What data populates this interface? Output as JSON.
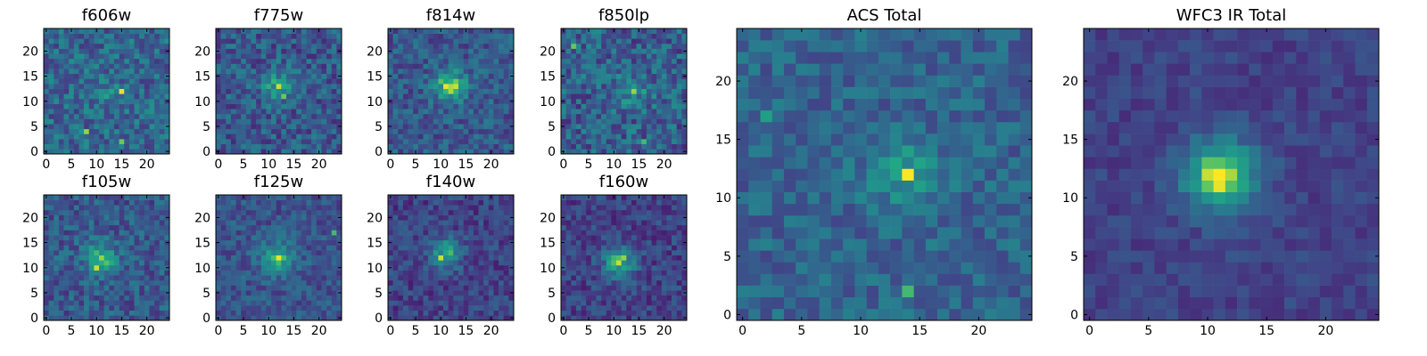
{
  "chart_data": [
    {
      "type": "heatmap",
      "title": "f606w",
      "xticks": [
        "0",
        "5",
        "10",
        "15",
        "20"
      ],
      "yticks": [
        "0",
        "5",
        "10",
        "15",
        "20"
      ],
      "xlim": [
        0,
        25
      ],
      "ylim": [
        0,
        25
      ],
      "colormap": "viridis",
      "peak": [
        12,
        12
      ],
      "blob_amplitude": 0.12,
      "noise": 0.42,
      "base": 0.42,
      "seed": 11,
      "spikes": [
        [
          15,
          12,
          0.98
        ],
        [
          8,
          4,
          0.9
        ],
        [
          15,
          2,
          0.85
        ]
      ]
    },
    {
      "type": "heatmap",
      "title": "f775w",
      "xticks": [
        "0",
        "5",
        "10",
        "15",
        "20"
      ],
      "yticks": [
        "0",
        "5",
        "10",
        "15",
        "20"
      ],
      "xlim": [
        0,
        25
      ],
      "ylim": [
        0,
        25
      ],
      "colormap": "viridis",
      "peak": [
        12,
        13
      ],
      "blob_amplitude": 0.35,
      "noise": 0.4,
      "base": 0.35,
      "seed": 23,
      "spikes": [
        [
          12,
          13,
          0.95
        ],
        [
          13,
          11,
          0.85
        ]
      ]
    },
    {
      "type": "heatmap",
      "title": "f814w",
      "xticks": [
        "0",
        "5",
        "10",
        "15",
        "20"
      ],
      "yticks": [
        "0",
        "5",
        "10",
        "15",
        "20"
      ],
      "xlim": [
        0,
        25
      ],
      "ylim": [
        0,
        25
      ],
      "colormap": "viridis",
      "peak": [
        12,
        13
      ],
      "blob_amplitude": 0.5,
      "noise": 0.35,
      "base": 0.35,
      "seed": 37,
      "spikes": [
        [
          11,
          13,
          0.98
        ],
        [
          13,
          13,
          0.95
        ],
        [
          12,
          12,
          0.92
        ]
      ]
    },
    {
      "type": "heatmap",
      "title": "f850lp",
      "xticks": [
        "0",
        "5",
        "10",
        "15",
        "20"
      ],
      "yticks": [
        "0",
        "5",
        "10",
        "15",
        "20"
      ],
      "xlim": [
        0,
        25
      ],
      "ylim": [
        0,
        25
      ],
      "colormap": "viridis",
      "peak": [
        14,
        12
      ],
      "blob_amplitude": 0.25,
      "noise": 0.45,
      "base": 0.38,
      "seed": 41,
      "spikes": [
        [
          14,
          12,
          0.9
        ],
        [
          2,
          21,
          0.85
        ],
        [
          16,
          2,
          0.8
        ]
      ]
    },
    {
      "type": "heatmap",
      "title": "ACS Total",
      "xticks": [
        "0",
        "5",
        "10",
        "15",
        "20"
      ],
      "yticks": [
        "0",
        "5",
        "10",
        "15",
        "20"
      ],
      "xlim": [
        0,
        25
      ],
      "ylim": [
        0,
        25
      ],
      "colormap": "viridis",
      "peak": [
        14,
        12
      ],
      "blob_amplitude": 0.25,
      "noise": 0.3,
      "base": 0.4,
      "seed": 53,
      "spikes": [
        [
          14,
          12,
          1.0
        ],
        [
          14,
          2,
          0.8
        ],
        [
          2,
          17,
          0.7
        ]
      ]
    },
    {
      "type": "heatmap",
      "title": "f105w",
      "xticks": [
        "0",
        "5",
        "10",
        "15",
        "20"
      ],
      "yticks": [
        "0",
        "5",
        "10",
        "15",
        "20"
      ],
      "xlim": [
        0,
        25
      ],
      "ylim": [
        0,
        25
      ],
      "colormap": "viridis",
      "peak": [
        11,
        12
      ],
      "blob_amplitude": 0.4,
      "noise": 0.35,
      "base": 0.35,
      "seed": 67,
      "spikes": [
        [
          10,
          10,
          0.95
        ],
        [
          11,
          12,
          0.9
        ]
      ]
    },
    {
      "type": "heatmap",
      "title": "f125w",
      "xticks": [
        "0",
        "5",
        "10",
        "15",
        "20"
      ],
      "yticks": [
        "0",
        "5",
        "10",
        "15",
        "20"
      ],
      "xlim": [
        0,
        25
      ],
      "ylim": [
        0,
        25
      ],
      "colormap": "viridis",
      "peak": [
        12,
        12
      ],
      "blob_amplitude": 0.4,
      "noise": 0.3,
      "base": 0.33,
      "seed": 71,
      "spikes": [
        [
          12,
          12,
          0.98
        ],
        [
          23,
          17,
          0.8
        ]
      ]
    },
    {
      "type": "heatmap",
      "title": "f140w",
      "xticks": [
        "0",
        "5",
        "10",
        "15",
        "20"
      ],
      "yticks": [
        "0",
        "5",
        "10",
        "15",
        "20"
      ],
      "xlim": [
        0,
        25
      ],
      "ylim": [
        0,
        25
      ],
      "colormap": "viridis",
      "peak": [
        11,
        13
      ],
      "blob_amplitude": 0.45,
      "noise": 0.3,
      "base": 0.25,
      "seed": 83,
      "spikes": [
        [
          10,
          12,
          0.95
        ]
      ]
    },
    {
      "type": "heatmap",
      "title": "f160w",
      "xticks": [
        "0",
        "5",
        "10",
        "15",
        "20"
      ],
      "yticks": [
        "0",
        "5",
        "10",
        "15",
        "20"
      ],
      "xlim": [
        0,
        25
      ],
      "ylim": [
        0,
        25
      ],
      "colormap": "viridis",
      "peak": [
        11,
        11
      ],
      "blob_amplitude": 0.5,
      "noise": 0.3,
      "base": 0.25,
      "seed": 97,
      "spikes": [
        [
          11,
          11,
          0.95
        ],
        [
          12,
          12,
          0.9
        ]
      ]
    },
    {
      "type": "heatmap",
      "title": "WFC3 IR Total",
      "xticks": [
        "0",
        "5",
        "10",
        "15",
        "20"
      ],
      "yticks": [
        "0",
        "5",
        "10",
        "15",
        "20"
      ],
      "xlim": [
        0,
        25
      ],
      "ylim": [
        0,
        25
      ],
      "colormap": "viridis",
      "peak": [
        11,
        12
      ],
      "blob_amplitude": 0.65,
      "noise": 0.18,
      "base": 0.25,
      "seed": 101,
      "spikes": [
        [
          11,
          12,
          1.0
        ],
        [
          11,
          11,
          0.98
        ],
        [
          10,
          12,
          0.95
        ]
      ]
    }
  ]
}
